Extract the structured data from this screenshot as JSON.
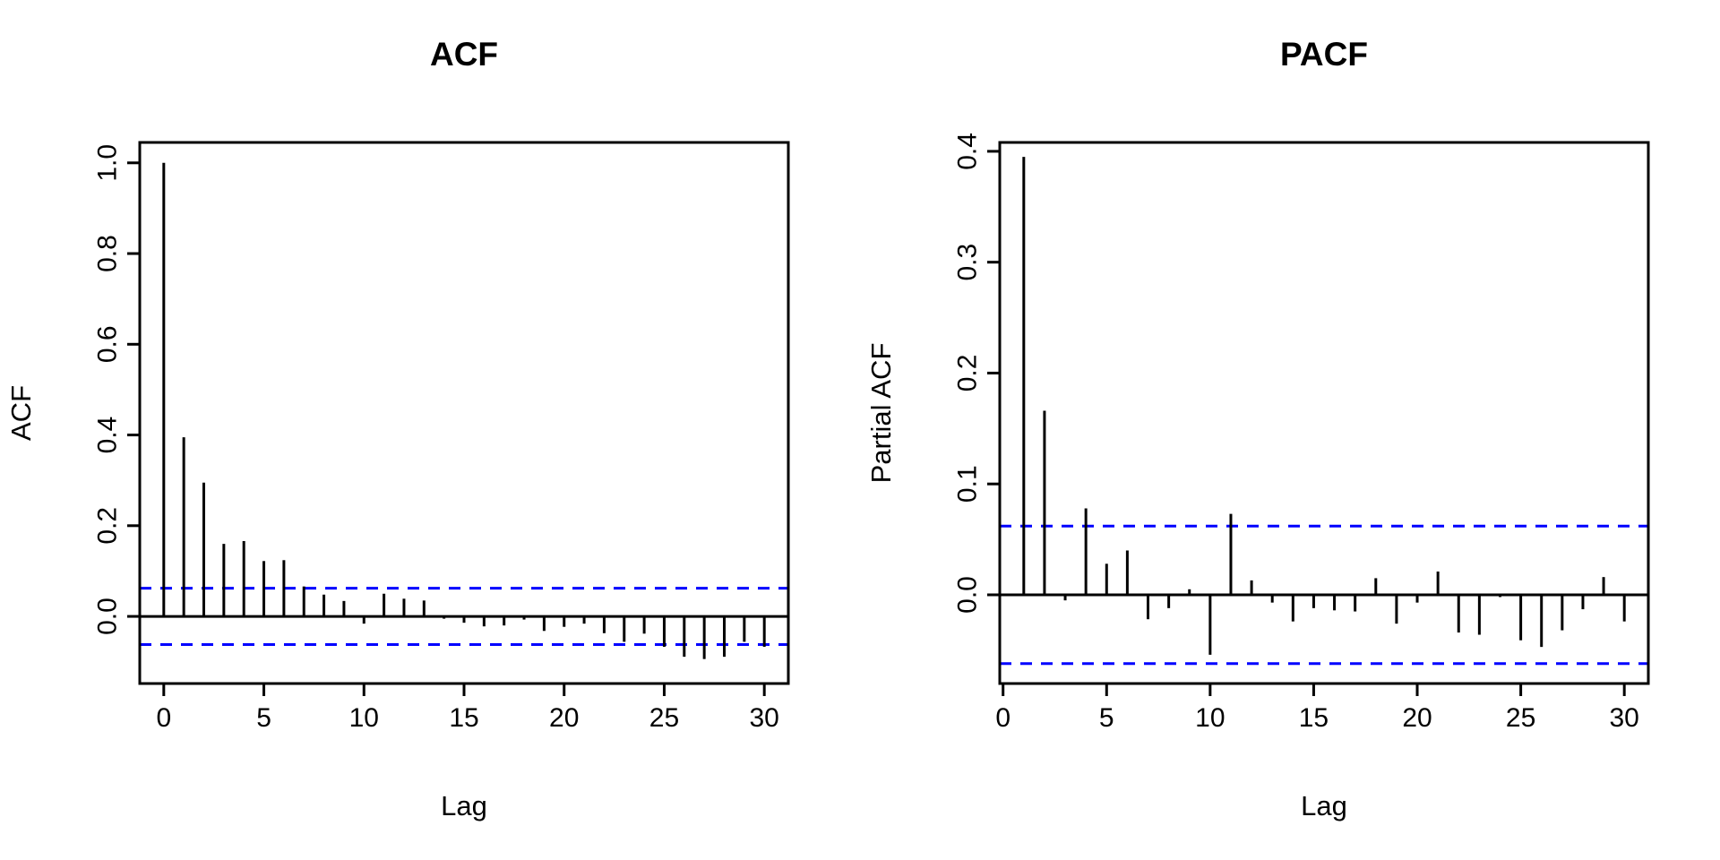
{
  "figure": {
    "background": "#ffffff",
    "axis_color": "#000000",
    "bar_color": "#000000",
    "conf_line_color": "#0000ff"
  },
  "chart_data": [
    {
      "type": "bar",
      "title": "ACF",
      "xlabel": "Lag",
      "ylabel": "ACF",
      "start_lag": 0,
      "lag_max": 30,
      "values": [
        1.0,
        0.395,
        0.295,
        0.16,
        0.166,
        0.122,
        0.124,
        0.066,
        0.048,
        0.034,
        -0.016,
        0.05,
        0.039,
        0.035,
        -0.005,
        -0.014,
        -0.022,
        -0.02,
        -0.007,
        -0.032,
        -0.023,
        -0.016,
        -0.037,
        -0.056,
        -0.038,
        -0.067,
        -0.089,
        -0.094,
        -0.089,
        -0.056,
        -0.067
      ],
      "conf_bound": 0.062,
      "conf_style": "dashed",
      "x_ticks": [
        0,
        5,
        10,
        15,
        20,
        25,
        30
      ],
      "y_ticks": [
        0.0,
        0.2,
        0.4,
        0.6,
        0.8,
        1.0
      ],
      "y_tick_decimals": 1,
      "xlim": [
        -1.2,
        31.2
      ],
      "ylim": [
        -0.148,
        1.045
      ],
      "grid": false,
      "legend": null
    },
    {
      "type": "bar",
      "title": "PACF",
      "xlabel": "Lag",
      "ylabel": "Partial ACF",
      "start_lag": 1,
      "lag_max": 30,
      "values": [
        0.395,
        0.166,
        -0.005,
        0.078,
        0.028,
        0.04,
        -0.022,
        -0.012,
        0.005,
        -0.054,
        0.073,
        0.013,
        -0.007,
        -0.024,
        -0.012,
        -0.014,
        -0.015,
        0.015,
        -0.026,
        -0.007,
        0.021,
        -0.034,
        -0.036,
        -0.002,
        -0.041,
        -0.047,
        -0.032,
        -0.013,
        0.016,
        -0.024
      ],
      "conf_bound": 0.062,
      "conf_style": "dashed",
      "x_ticks": [
        0,
        5,
        10,
        15,
        20,
        25,
        30
      ],
      "y_ticks": [
        0.0,
        0.1,
        0.2,
        0.3,
        0.4
      ],
      "y_tick_decimals": 1,
      "xlim": [
        -0.16,
        31.16
      ],
      "ylim": [
        -0.08,
        0.408
      ],
      "grid": false,
      "legend": null
    }
  ]
}
